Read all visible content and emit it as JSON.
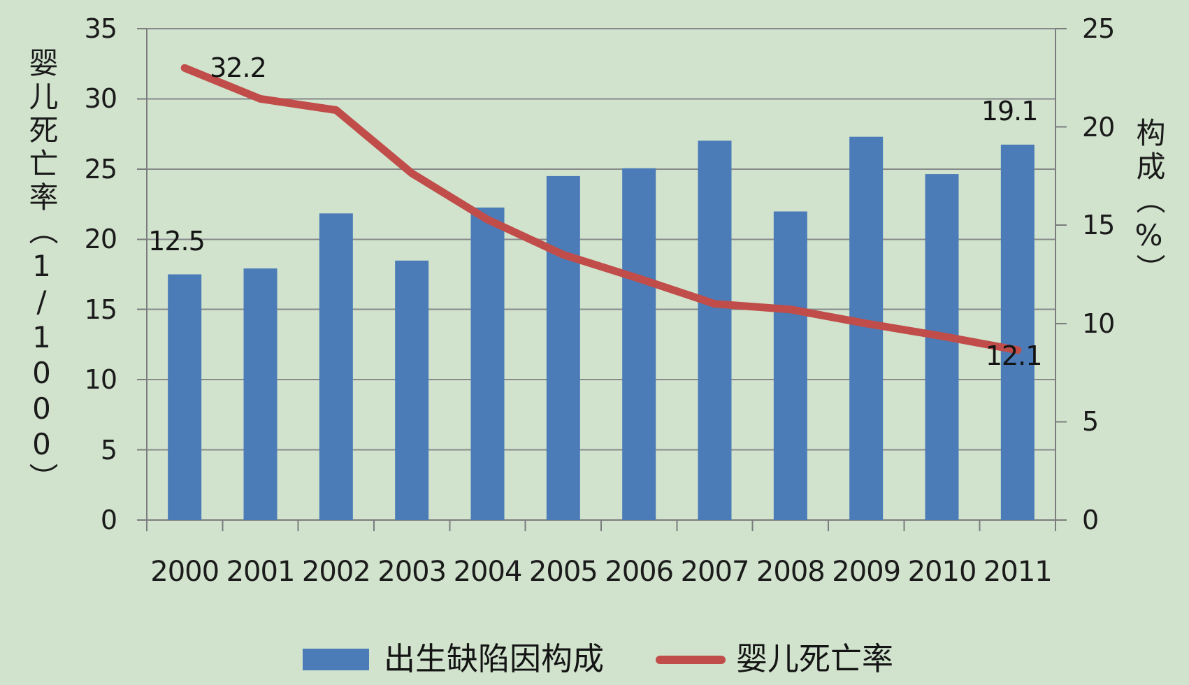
{
  "chart_data": {
    "type": "bar",
    "subtype": "combo-bar-line",
    "categories": [
      "2000",
      "2001",
      "2002",
      "2003",
      "2004",
      "2005",
      "2006",
      "2007",
      "2008",
      "2009",
      "2010",
      "2011"
    ],
    "series": [
      {
        "name": "出生缺陷因构成",
        "chart": "bar",
        "axis": "right",
        "color": "#4b7cb8",
        "values": [
          12.5,
          12.8,
          15.6,
          13.2,
          15.9,
          17.5,
          17.9,
          19.3,
          15.7,
          19.5,
          17.6,
          19.1
        ]
      },
      {
        "name": "婴儿死亡率",
        "chart": "line",
        "axis": "left",
        "color": "#c04d49",
        "values": [
          32.2,
          30.0,
          29.2,
          24.7,
          21.4,
          18.9,
          17.2,
          15.4,
          15.0,
          14.0,
          13.1,
          12.1
        ]
      }
    ],
    "left_axis": {
      "title": "婴儿死亡率（1/1000）",
      "min": 0,
      "max": 35,
      "step": 5,
      "ticks": [
        "0",
        "5",
        "10",
        "15",
        "20",
        "25",
        "30",
        "35"
      ]
    },
    "right_axis": {
      "title": "构成（%）",
      "min": 0,
      "max": 25,
      "step": 5,
      "ticks": [
        "0",
        "5",
        "10",
        "15",
        "20",
        "25"
      ]
    },
    "data_labels": [
      {
        "text": "32.2",
        "series": 1,
        "index": 0
      },
      {
        "text": "12.5",
        "series": 0,
        "index": 0
      },
      {
        "text": "19.1",
        "series": 0,
        "index": 11
      },
      {
        "text": "12.1",
        "series": 1,
        "index": 11
      }
    ],
    "grid": true,
    "legend_position": "bottom",
    "legend": [
      "出生缺陷因构成",
      "婴儿死亡率"
    ],
    "colors": {
      "background": "#d1e3cd",
      "gridline": "#87898a",
      "axis_line": "#7a7c7d",
      "text": "#1b1b1b"
    }
  }
}
